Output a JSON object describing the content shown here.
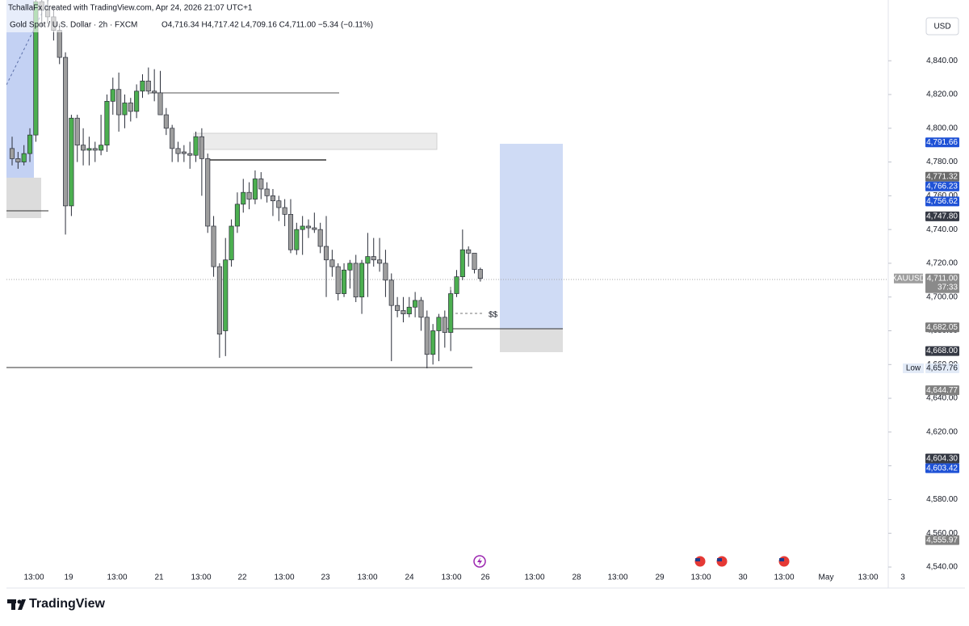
{
  "credit": "TchallaFx created with TradingView.com, Apr 24, 2026 21:07 UTC+1",
  "legend": {
    "symbol": "Gold Spot / U.S. Dollar · 2h · FXCM",
    "ohlc": "O4,716.34 H4,717.42 L4,709.16 C4,711.00 −5.34 (−0.11%)"
  },
  "currency": "USD",
  "brand": "TradingView",
  "chart_data": {
    "type": "candlestick",
    "up_color": "#4caf50",
    "down_color": "#9e9e9e",
    "ylim": [
      4529,
      4876
    ],
    "yticks": [
      {
        "value": 4540,
        "label": "4,540.00"
      },
      {
        "value": 4560,
        "label": "4,560.00"
      },
      {
        "value": 4580,
        "label": "4,580.00"
      },
      {
        "value": 4600,
        "label": "4,600.00"
      },
      {
        "value": 4620,
        "label": "4,620.00"
      },
      {
        "value": 4640,
        "label": "4,640.00"
      },
      {
        "value": 4660,
        "label": "4,660.00"
      },
      {
        "value": 4680,
        "label": "4,680.00"
      },
      {
        "value": 4700,
        "label": "4,700.00"
      },
      {
        "value": 4720,
        "label": "4,720.00"
      },
      {
        "value": 4740,
        "label": "4,740.00"
      },
      {
        "value": 4760,
        "label": "4,760.00"
      },
      {
        "value": 4780,
        "label": "4,780.00"
      },
      {
        "value": 4800,
        "label": "4,800.00"
      },
      {
        "value": 4820,
        "label": "4,820.00"
      },
      {
        "value": 4840,
        "label": "4,840.00"
      }
    ],
    "x_labels": [
      "13:00",
      "19",
      "13:00",
      "21",
      "13:00",
      "22",
      "13:00",
      "23",
      "13:00",
      "24",
      "13:00",
      "26",
      "13:00",
      "28",
      "13:00",
      "29",
      "13:00",
      "30",
      "13:00",
      "May",
      "13:00",
      "3"
    ],
    "open": [
      4788,
      4782,
      4780,
      4785,
      4796,
      4875,
      4870,
      4866,
      4858,
      4842,
      4754,
      4806,
      4790,
      4787,
      4788,
      4787,
      4790,
      4816,
      4823,
      4808,
      4815,
      4810,
      4822,
      4828,
      4822,
      4821,
      4808,
      4800,
      4788,
      4786,
      4785,
      4784,
      4795,
      4782,
      4742,
      4718,
      4680,
      4722,
      4742,
      4755,
      4762,
      4758,
      4770,
      4764,
      4760,
      4757,
      4753,
      4749,
      4728,
      4740,
      4742,
      4741,
      4740,
      4730,
      4722,
      4718,
      4702,
      4716,
      4720,
      4700,
      4720,
      4724,
      4722,
      4720,
      4710,
      4695,
      4692,
      4690,
      4694,
      4698,
      4688,
      4666,
      4680,
      4688,
      4679,
      4702,
      4712,
      4728,
      4726,
      4716.34
    ],
    "high": [
      4795,
      4786,
      4790,
      4800,
      4880,
      4885,
      4880,
      4872,
      4862,
      4845,
      4808,
      4808,
      4800,
      4795,
      4792,
      4808,
      4820,
      4830,
      4833,
      4820,
      4818,
      4826,
      4832,
      4836,
      4835,
      4834,
      4812,
      4802,
      4792,
      4790,
      4792,
      4798,
      4800,
      4785,
      4748,
      4720,
      4735,
      4746,
      4762,
      4770,
      4768,
      4775,
      4774,
      4768,
      4764,
      4760,
      4758,
      4758,
      4744,
      4748,
      4746,
      4750,
      4744,
      4748,
      4728,
      4720,
      4720,
      4722,
      4725,
      4722,
      4738,
      4735,
      4735,
      4728,
      4714,
      4700,
      4700,
      4700,
      4703,
      4700,
      4692,
      4684,
      4690,
      4692,
      4704,
      4716,
      4740,
      4730,
      4726,
      4717.42
    ],
    "low": [
      4778,
      4776,
      4778,
      4780,
      4792,
      4860,
      4862,
      4852,
      4838,
      4737,
      4748,
      4780,
      4778,
      4778,
      4780,
      4784,
      4786,
      4808,
      4798,
      4800,
      4804,
      4806,
      4818,
      4820,
      4816,
      4808,
      4796,
      4780,
      4780,
      4780,
      4776,
      4780,
      4760,
      4738,
      4712,
      4664,
      4665,
      4718,
      4738,
      4750,
      4752,
      4755,
      4758,
      4756,
      4748,
      4745,
      4742,
      4726,
      4725,
      4725,
      4735,
      4738,
      4726,
      4700,
      4712,
      4698,
      4700,
      4705,
      4697,
      4690,
      4700,
      4718,
      4715,
      4700,
      4662,
      4688,
      4685,
      4688,
      4688,
      4680,
      4657.76,
      4660,
      4662,
      4670,
      4668,
      4700,
      4710,
      4718,
      4714,
      4709.16
    ],
    "close": [
      4782,
      4780,
      4785,
      4796,
      4875,
      4870,
      4866,
      4858,
      4842,
      4754,
      4806,
      4790,
      4787,
      4788,
      4787,
      4790,
      4816,
      4823,
      4808,
      4815,
      4810,
      4822,
      4828,
      4822,
      4821,
      4808,
      4800,
      4788,
      4785,
      4785,
      4784,
      4795,
      4782,
      4742,
      4718,
      4678,
      4722,
      4742,
      4755,
      4762,
      4758,
      4770,
      4764,
      4760,
      4757,
      4753,
      4749,
      4728,
      4740,
      4742,
      4741,
      4740,
      4730,
      4722,
      4718,
      4702,
      4716,
      4720,
      4700,
      4720,
      4724,
      4722,
      4720,
      4710,
      4695,
      4692,
      4690,
      4694,
      4698,
      4688,
      4666,
      4680,
      4688,
      4679,
      4702,
      4712,
      4728,
      4726,
      4716.34,
      4711.0
    ],
    "price_tags": [
      {
        "value": 4791.66,
        "label": "4,791.66",
        "color": "#1f52d6"
      },
      {
        "value": 4771.32,
        "label": "4,771.32",
        "color": "#6b6b6b"
      },
      {
        "value": 4766.23,
        "label": "4,766.23",
        "color": "#1f52d6"
      },
      {
        "value": 4756.62,
        "label": "4,756.62",
        "color": "#1f52d6"
      },
      {
        "value": 4747.8,
        "label": "4,747.80",
        "color": "#363a45"
      },
      {
        "value": 4711.0,
        "label": "4,711.00",
        "color": "#8a8a8a"
      },
      {
        "value": 4682.05,
        "label": "4,682.05",
        "color": "#7b7b7b"
      },
      {
        "value": 4668.0,
        "label": "4,668.00",
        "color": "#363a45"
      },
      {
        "value": 4657.76,
        "label": "4,657.76",
        "color": "#e3ebf7"
      },
      {
        "value": 4644.77,
        "label": "4,644.77",
        "color": "#808080"
      },
      {
        "value": 4604.3,
        "label": "4,604.30",
        "color": "#363a45"
      },
      {
        "value": 4603.42,
        "label": "4,603.42",
        "color": "#1f52d6"
      },
      {
        "value": 4555.97,
        "label": "4,555.97",
        "color": "#808080"
      }
    ],
    "symbol_tag": "XAUUSD",
    "countdown": "37:33",
    "low_label": "Low",
    "target_label": "$$"
  }
}
